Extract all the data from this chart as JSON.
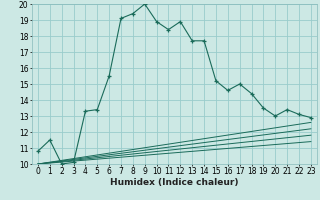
{
  "xlabel": "Humidex (Indice chaleur)",
  "bg_color": "#cce8e4",
  "grid_color": "#99cccc",
  "line_color": "#1a6b5a",
  "xlim": [
    -0.5,
    23.5
  ],
  "ylim": [
    10,
    20
  ],
  "yticks": [
    10,
    11,
    12,
    13,
    14,
    15,
    16,
    17,
    18,
    19,
    20
  ],
  "xticks": [
    0,
    1,
    2,
    3,
    4,
    5,
    6,
    7,
    8,
    9,
    10,
    11,
    12,
    13,
    14,
    15,
    16,
    17,
    18,
    19,
    20,
    21,
    22,
    23
  ],
  "main_x": [
    0,
    1,
    2,
    3,
    4,
    5,
    6,
    7,
    8,
    9,
    10,
    11,
    12,
    13,
    14,
    15,
    16,
    17,
    18,
    19,
    20,
    21,
    22,
    23
  ],
  "main_y": [
    10.8,
    11.5,
    10.0,
    10.1,
    13.3,
    13.4,
    15.5,
    19.1,
    19.4,
    20.0,
    18.9,
    18.4,
    18.9,
    17.7,
    17.7,
    15.2,
    14.6,
    15.0,
    14.4,
    13.5,
    13.0,
    13.4,
    13.1,
    12.9
  ],
  "ref_lines": [
    {
      "x": [
        0,
        23
      ],
      "y": [
        10.0,
        12.6
      ]
    },
    {
      "x": [
        0,
        23
      ],
      "y": [
        10.0,
        12.2
      ]
    },
    {
      "x": [
        0,
        23
      ],
      "y": [
        10.0,
        11.8
      ]
    },
    {
      "x": [
        0,
        23
      ],
      "y": [
        10.0,
        11.4
      ]
    }
  ],
  "xlabel_fontsize": 6.5,
  "tick_fontsize": 5.5
}
